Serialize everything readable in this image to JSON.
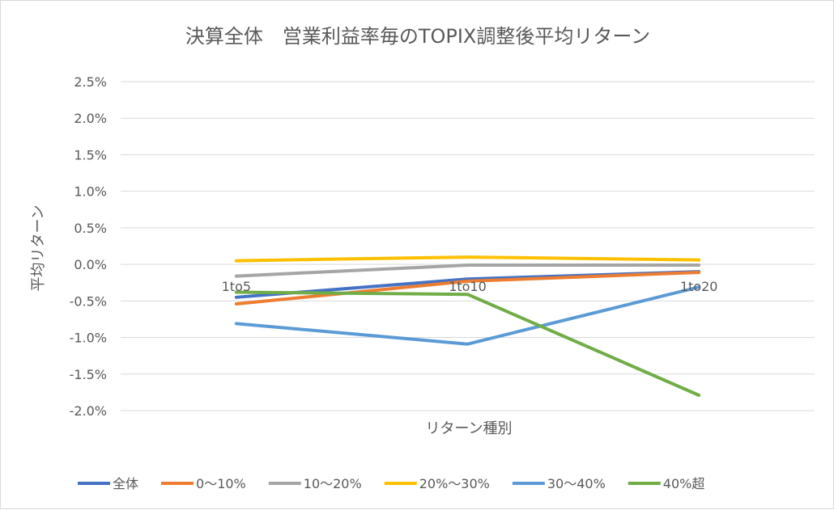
{
  "chart_data": {
    "type": "line",
    "title": "決算全体　営業利益率毎のTOPIX調整後平均リターン",
    "xlabel": "リターン種別",
    "ylabel": "平均リターン",
    "categories": [
      "1to5",
      "1to10",
      "1to20"
    ],
    "ylim": [
      -0.02,
      0.025
    ],
    "y_ticks": [
      0.025,
      0.02,
      0.015,
      0.01,
      0.005,
      0.0,
      -0.005,
      -0.01,
      -0.015,
      -0.02
    ],
    "y_tick_labels": [
      "2.5%",
      "2.0%",
      "1.5%",
      "1.0%",
      "0.5%",
      "0.0%",
      "-0.5%",
      "-1.0%",
      "-1.5%",
      "-2.0%"
    ],
    "grid": true,
    "legend_position": "bottom",
    "series": [
      {
        "name": "全体",
        "color": "#4472c4",
        "values": [
          -0.0045,
          -0.002,
          -0.001
        ]
      },
      {
        "name": "0～10%",
        "color": "#ed7d31",
        "values": [
          -0.0054,
          -0.0023,
          -0.0011
        ]
      },
      {
        "name": "10～20%",
        "color": "#a5a5a5",
        "values": [
          -0.0016,
          -0.0001,
          -0.0001
        ]
      },
      {
        "name": "20%～30%",
        "color": "#ffc000",
        "values": [
          0.0005,
          0.001,
          0.0006
        ]
      },
      {
        "name": "30～40%",
        "color": "#5b9bd5",
        "values": [
          -0.0081,
          -0.0109,
          -0.0031
        ]
      },
      {
        "name": "40%超",
        "color": "#70ad47",
        "values": [
          -0.0038,
          -0.0041,
          -0.0179
        ]
      }
    ]
  }
}
